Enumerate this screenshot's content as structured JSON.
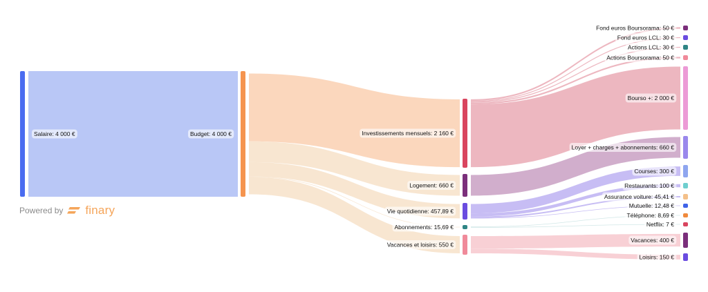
{
  "branding": {
    "powered_by": "Powered by",
    "brand": "finary",
    "brand_color": "#f5a55a"
  },
  "nodes": [
    {
      "id": "salaire",
      "label": "Salaire: 4 000 €",
      "value": 4000,
      "color": "#4a6cf0",
      "link_color": "#b5c4f5"
    },
    {
      "id": "budget",
      "label": "Budget: 4 000 €",
      "value": 4000,
      "color": "#f5944f",
      "link_color": "#f8e5cf"
    },
    {
      "id": "invest",
      "label": "Investissements mensuels: 2 160 €",
      "value": 2160,
      "color": "#d9455f",
      "link_color": "#ecb3bd"
    },
    {
      "id": "logement",
      "label": "Logement: 660 €",
      "value": 660,
      "color": "#7b2f7b",
      "link_color": "#cfaac9"
    },
    {
      "id": "vie",
      "label": "Vie quotidienne: 457,89 €",
      "value": 457.89,
      "color": "#6a4ce0",
      "link_color": "#c4b9f3"
    },
    {
      "id": "abonnements",
      "label": "Abonnements: 15,69 €",
      "value": 15.69,
      "color": "#2f8585",
      "link_color": "#cfe6e6"
    },
    {
      "id": "vacloisirs",
      "label": "Vacances et loisirs: 550 €",
      "value": 550,
      "color": "#f08a9a",
      "link_color": "#f8cdd3"
    },
    {
      "id": "feb",
      "label": "Fond euros Boursorama: 50 €",
      "value": 50,
      "color": "#7b2f7b"
    },
    {
      "id": "fel",
      "label": "Fond euros LCL: 30 €",
      "value": 30,
      "color": "#6a4ce0"
    },
    {
      "id": "al",
      "label": "Actions LCL: 30 €",
      "value": 30,
      "color": "#2f8585"
    },
    {
      "id": "ab",
      "label": "Actions Boursorama: 50 €",
      "value": 50,
      "color": "#f08a9a"
    },
    {
      "id": "bourso",
      "label": "Bourso +: 2 000 €",
      "value": 2000,
      "color": "#ec9ad6"
    },
    {
      "id": "loyer",
      "label": "Loyer + charges + abonnements: 660 €",
      "value": 660,
      "color": "#9a88ec"
    },
    {
      "id": "courses",
      "label": "Courses: 300 €",
      "value": 300,
      "color": "#8fa6ef"
    },
    {
      "id": "restaurants",
      "label": "Restaurants: 100 €",
      "value": 100,
      "color": "#6fcfcf"
    },
    {
      "id": "assurance",
      "label": "Assurance voiture: 45,41 €",
      "value": 45.41,
      "color": "#f4c08a"
    },
    {
      "id": "mutuelle",
      "label": "Mutuelle: 12,48 €",
      "value": 12.48,
      "color": "#3f63e8"
    },
    {
      "id": "telephone",
      "label": "Téléphone: 8,69 €",
      "value": 8.69,
      "color": "#f08a3d"
    },
    {
      "id": "netflix",
      "label": "Netflix: 7 €",
      "value": 7,
      "color": "#d9455f"
    },
    {
      "id": "vacances",
      "label": "Vacances: 400 €",
      "value": 400,
      "color": "#7b2f7b"
    },
    {
      "id": "loisirs",
      "label": "Loisirs: 150 €",
      "value": 150,
      "color": "#6a4ce0"
    }
  ],
  "links": [
    {
      "source": "salaire",
      "target": "budget",
      "value": 4000
    },
    {
      "source": "budget",
      "target": "invest",
      "value": 2160,
      "color": "#fbd5b9"
    },
    {
      "source": "budget",
      "target": "logement",
      "value": 660
    },
    {
      "source": "budget",
      "target": "vie",
      "value": 457.89
    },
    {
      "source": "budget",
      "target": "abonnements",
      "value": 15.69
    },
    {
      "source": "budget",
      "target": "vacloisirs",
      "value": 550
    },
    {
      "source": "invest",
      "target": "feb",
      "value": 50
    },
    {
      "source": "invest",
      "target": "fel",
      "value": 30
    },
    {
      "source": "invest",
      "target": "al",
      "value": 30
    },
    {
      "source": "invest",
      "target": "ab",
      "value": 50
    },
    {
      "source": "invest",
      "target": "bourso",
      "value": 2000
    },
    {
      "source": "logement",
      "target": "loyer",
      "value": 660
    },
    {
      "source": "vie",
      "target": "courses",
      "value": 300
    },
    {
      "source": "vie",
      "target": "restaurants",
      "value": 100
    },
    {
      "source": "vie",
      "target": "assurance",
      "value": 45.41
    },
    {
      "source": "vie",
      "target": "mutuelle",
      "value": 12.48
    },
    {
      "source": "abonnements",
      "target": "telephone",
      "value": 8.69
    },
    {
      "source": "abonnements",
      "target": "netflix",
      "value": 7
    },
    {
      "source": "vacloisirs",
      "target": "vacances",
      "value": 400
    },
    {
      "source": "vacloisirs",
      "target": "loisirs",
      "value": 150
    }
  ]
}
